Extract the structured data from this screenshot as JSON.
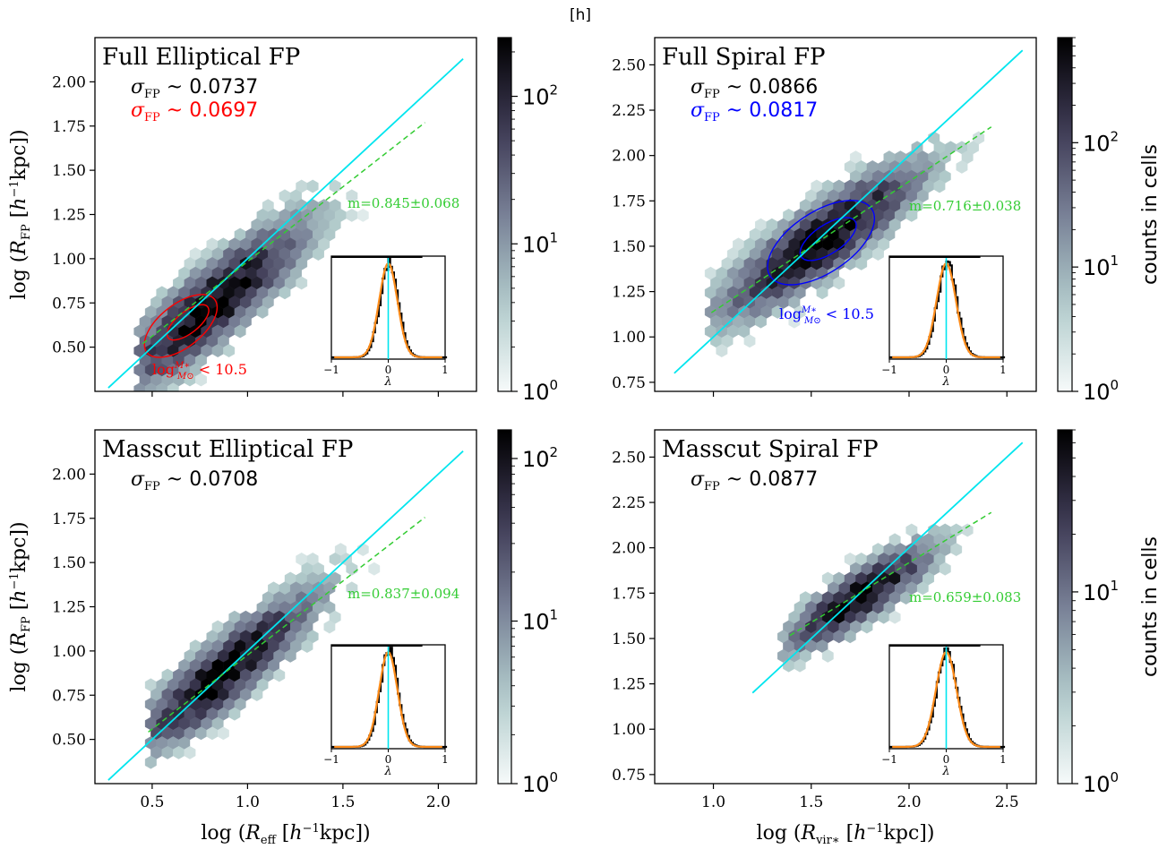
{
  "figure": {
    "header": "[h]"
  },
  "chart_data": [
    {
      "type": "hexbin",
      "title": "Full Elliptical FP",
      "ylabel": "log (R_FP [h^-1 kpc])",
      "xlabel": "",
      "xlim": [
        0.2,
        2.2
      ],
      "ylim": [
        0.25,
        2.25
      ],
      "xticks": [
        0.5,
        1.0,
        1.5,
        2.0
      ],
      "yticks": [
        0.5,
        0.75,
        1.0,
        1.25,
        1.5,
        1.75,
        2.0
      ],
      "ytick_labels": [
        "0.50",
        "0.75",
        "1.00",
        "1.25",
        "1.50",
        "1.75",
        "2.00"
      ],
      "show_xtick_labels": false,
      "sigma_lines": [
        {
          "label": "σ_FP ~ 0.0737",
          "color": "#000000"
        },
        {
          "label": "σ_FP ~ 0.0697",
          "color": "#ff0000"
        }
      ],
      "one_to_one": {
        "color": "#00e5ee",
        "x": [
          0.27,
          2.13
        ]
      },
      "fit": {
        "label": "m=0.845±0.068",
        "slope": 0.845,
        "intercept": 0.139,
        "x": [
          0.45,
          1.93
        ],
        "color": "#33cc33"
      },
      "density": {
        "center": [
          0.82,
          0.74
        ],
        "cloud_x": [
          0.45,
          1.75
        ],
        "spread_perp": 0.17,
        "peak": 250
      },
      "contour": {
        "label": "log M*/M⊙ < 10.5",
        "color": "#ff0000",
        "center": [
          0.65,
          0.62
        ]
      },
      "colorbar": {
        "scale": "log",
        "min": 1,
        "max": 250,
        "ticks": [
          "10^0",
          "10^1",
          "10^2"
        ],
        "label": ""
      },
      "inset": {
        "xlabel": "λ",
        "xticks": [
          "−1",
          "0",
          "1"
        ],
        "xlim": [
          -1,
          1
        ],
        "sigma": 0.16
      }
    },
    {
      "type": "hexbin",
      "title": "Full Spiral FP",
      "ylabel": "",
      "xlabel": "",
      "xlim": [
        0.7,
        2.65
      ],
      "ylim": [
        0.7,
        2.65
      ],
      "xticks": [
        1.0,
        1.5,
        2.0,
        2.5
      ],
      "yticks": [
        0.75,
        1.0,
        1.25,
        1.5,
        1.75,
        2.0,
        2.25,
        2.5
      ],
      "ytick_labels": [
        "0.75",
        "1.00",
        "1.25",
        "1.50",
        "1.75",
        "2.00",
        "2.25",
        "2.50"
      ],
      "show_xtick_labels": false,
      "sigma_lines": [
        {
          "label": "σ_FP ~ 0.0866",
          "color": "#000000"
        },
        {
          "label": "σ_FP ~ 0.0817",
          "color": "#0000ff"
        }
      ],
      "one_to_one": {
        "color": "#00e5ee",
        "x": [
          0.8,
          2.58
        ]
      },
      "fit": {
        "label": "m=0.716±0.038",
        "slope": 0.716,
        "intercept": 0.425,
        "x": [
          0.99,
          2.42
        ],
        "color": "#33cc33"
      },
      "density": {
        "center": [
          1.55,
          1.53
        ],
        "cloud_x": [
          1.0,
          2.35
        ],
        "spread_perp": 0.15,
        "peak": 700
      },
      "contour": {
        "label": "log M*/M⊙ < 10.5",
        "color": "#0000ff",
        "center": [
          1.55,
          1.52
        ]
      },
      "colorbar": {
        "scale": "log",
        "min": 1,
        "max": 700,
        "ticks": [
          "10^0",
          "10^1",
          "10^2"
        ],
        "label": "counts in cells"
      },
      "inset": {
        "xlabel": "λ",
        "xticks": [
          "−1",
          "0",
          "1"
        ],
        "xlim": [
          -1,
          1
        ],
        "sigma": 0.17
      }
    },
    {
      "type": "hexbin",
      "title": "Masscut Elliptical FP",
      "ylabel": "log (R_FP [h^-1 kpc])",
      "xlabel": "log (R_eff [h^-1 kpc])",
      "xlim": [
        0.2,
        2.2
      ],
      "ylim": [
        0.25,
        2.25
      ],
      "xticks": [
        0.5,
        1.0,
        1.5,
        2.0
      ],
      "yticks": [
        0.5,
        0.75,
        1.0,
        1.25,
        1.5,
        1.75,
        2.0
      ],
      "ytick_labels": [
        "0.50",
        "0.75",
        "1.00",
        "1.25",
        "1.50",
        "1.75",
        "2.00"
      ],
      "xtick_labels": [
        "0.5",
        "1.0",
        "1.5",
        "2.0"
      ],
      "show_xtick_labels": true,
      "sigma_lines": [
        {
          "label": "σ_FP ~ 0.0708",
          "color": "#000000"
        }
      ],
      "one_to_one": {
        "color": "#00e5ee",
        "x": [
          0.27,
          2.13
        ]
      },
      "fit": {
        "label": "m=0.837±0.094",
        "slope": 0.837,
        "intercept": 0.14,
        "x": [
          0.48,
          1.93
        ],
        "color": "#33cc33"
      },
      "density": {
        "center": [
          0.88,
          0.88
        ],
        "cloud_x": [
          0.5,
          1.75
        ],
        "spread_perp": 0.15,
        "peak": 150
      },
      "contour": null,
      "colorbar": {
        "scale": "log",
        "min": 1,
        "max": 150,
        "ticks": [
          "10^0",
          "10^1",
          "10^2"
        ],
        "label": ""
      },
      "inset": {
        "xlabel": "λ",
        "xticks": [
          "−1",
          "0",
          "1"
        ],
        "xlim": [
          -1,
          1
        ],
        "sigma": 0.16
      }
    },
    {
      "type": "hexbin",
      "title": "Masscut Spiral FP",
      "ylabel": "",
      "xlabel": "log (R_vir* [h^-1 kpc])",
      "xlim": [
        0.7,
        2.65
      ],
      "ylim": [
        0.7,
        2.65
      ],
      "xticks": [
        1.0,
        1.5,
        2.0,
        2.5
      ],
      "yticks": [
        0.75,
        1.0,
        1.25,
        1.5,
        1.75,
        2.0,
        2.25,
        2.5
      ],
      "ytick_labels": [
        "0.75",
        "1.00",
        "1.25",
        "1.50",
        "1.75",
        "2.00",
        "2.25",
        "2.50"
      ],
      "xtick_labels": [
        "1.0",
        "1.5",
        "2.0",
        "2.5"
      ],
      "show_xtick_labels": true,
      "sigma_lines": [
        {
          "label": "σ_FP ~ 0.0877",
          "color": "#000000"
        }
      ],
      "one_to_one": {
        "color": "#00e5ee",
        "x": [
          1.2,
          2.58
        ]
      },
      "fit": {
        "label": "m=0.659±0.083",
        "slope": 0.659,
        "intercept": 0.6,
        "x": [
          1.39,
          2.42
        ],
        "color": "#33cc33"
      },
      "density": {
        "center": [
          1.75,
          1.73
        ],
        "cloud_x": [
          1.38,
          2.35
        ],
        "spread_perp": 0.11,
        "peak": 70
      },
      "contour": null,
      "colorbar": {
        "scale": "log",
        "min": 1,
        "max": 70,
        "ticks": [
          "10^0",
          "10^1"
        ],
        "label": "counts in cells"
      },
      "inset": {
        "xlabel": "λ",
        "xticks": [
          "−1",
          "0",
          "1"
        ],
        "xlim": [
          -1,
          1
        ],
        "sigma": 0.18
      }
    }
  ]
}
